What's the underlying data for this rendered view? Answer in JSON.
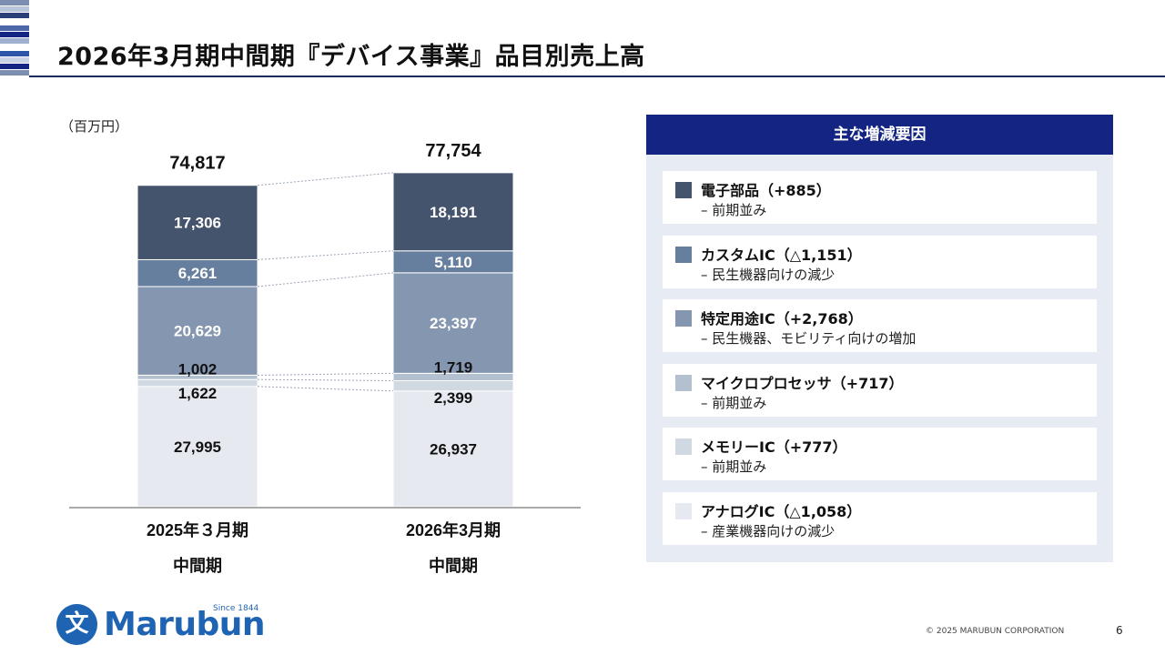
{
  "page": {
    "title": "2026年3月期中間期『デバイス事業』品目別売上高",
    "copyright": "© 2025 MARUBUN CORPORATION",
    "page_number": "6"
  },
  "logo": {
    "mark": "文",
    "text": "Marubun",
    "since": "Since 1844"
  },
  "chart_data": {
    "type": "stacked-bar",
    "unit_label": "（百万円）",
    "categories": [
      {
        "line1": "2025年３月期",
        "line2": "中間期"
      },
      {
        "line1": "2026年3月期",
        "line2": "中間期"
      }
    ],
    "totals": [
      {
        "value": 74817,
        "label": "74,817"
      },
      {
        "value": 77754,
        "label": "77,754"
      }
    ],
    "series": [
      {
        "name": "アナログIC",
        "color": "#e6eaf0",
        "values": [
          27995,
          26937
        ],
        "labels": [
          "27,995",
          "26,937"
        ],
        "label_color": "#111111"
      },
      {
        "name": "メモリーIC",
        "color": "#d0d8e2",
        "values": [
          1622,
          2399
        ],
        "labels": [
          "1,622",
          "2,399"
        ],
        "label_color": "#111111"
      },
      {
        "name": "マイクロプロセッサ",
        "color": "#b3c0d0",
        "values": [
          1002,
          1719
        ],
        "labels": [
          "1,002",
          "1,719"
        ],
        "label_color": "#111111"
      },
      {
        "name": "特定用途IC",
        "color": "#8597b0",
        "values": [
          20629,
          23397
        ],
        "labels": [
          "20,629",
          "23,397"
        ],
        "label_color": "#ffffff"
      },
      {
        "name": "カスタムIC",
        "color": "#667f9e",
        "values": [
          6261,
          5110
        ],
        "labels": [
          "6,261",
          "5,110"
        ],
        "label_color": "#ffffff"
      },
      {
        "name": "電子部品",
        "color": "#44546d",
        "values": [
          17306,
          18191
        ],
        "labels": [
          "17,306",
          "18,191"
        ],
        "label_color": "#ffffff"
      }
    ]
  },
  "reasons": {
    "header": "主な増減要因",
    "items": [
      {
        "title": "電子部品（+885）",
        "sub": "– 前期並み",
        "color": "#44546d"
      },
      {
        "title": "カスタムIC（△1,151）",
        "sub": "– 民生機器向けの減少",
        "color": "#667f9e"
      },
      {
        "title": "特定用途IC（+2,768）",
        "sub": "– 民生機器、モビリティ向けの増加",
        "color": "#8597b0"
      },
      {
        "title": "マイクロプロセッサ（+717）",
        "sub": "– 前期並み",
        "color": "#b3c0d0"
      },
      {
        "title": "メモリーIC（+777）",
        "sub": "– 前期並み",
        "color": "#d0d8e2"
      },
      {
        "title": "アナログIC（△1,058）",
        "sub": "– 産業機器向けの減少",
        "color": "#e6eaf0"
      }
    ]
  }
}
